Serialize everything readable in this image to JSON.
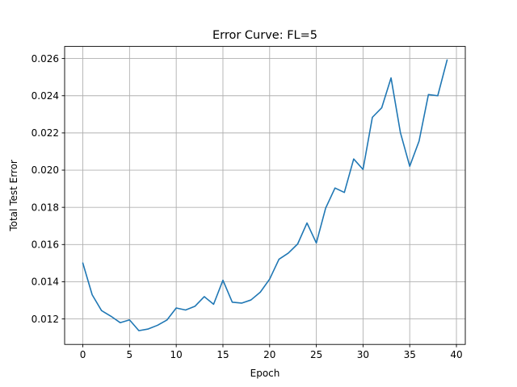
{
  "chart_data": {
    "type": "line",
    "title": "Error Curve: FL=5",
    "xlabel": "Epoch",
    "ylabel": "Total Test Error",
    "xlim": [
      -1.95,
      40.95
    ],
    "ylim": [
      0.01063,
      0.02665
    ],
    "xticks": [
      0,
      5,
      10,
      15,
      20,
      25,
      30,
      35,
      40
    ],
    "yticks": [
      0.012,
      0.014,
      0.016,
      0.018,
      0.02,
      0.022,
      0.024,
      0.026
    ],
    "xtick_labels": [
      "0",
      "5",
      "10",
      "15",
      "20",
      "25",
      "30",
      "35",
      "40"
    ],
    "ytick_labels": [
      "0.012",
      "0.014",
      "0.016",
      "0.018",
      "0.020",
      "0.022",
      "0.024",
      "0.026"
    ],
    "grid": true,
    "series": [
      {
        "color": "#1f77b4",
        "x": [
          0,
          1,
          2,
          3,
          4,
          5,
          6,
          7,
          8,
          9,
          10,
          11,
          12,
          13,
          14,
          15,
          16,
          17,
          18,
          19,
          20,
          21,
          22,
          23,
          24,
          25,
          26,
          27,
          28,
          29,
          30,
          31,
          32,
          33,
          34,
          35,
          36,
          37,
          38,
          39
        ],
        "y": [
          0.015,
          0.0133,
          0.01245,
          0.01215,
          0.0118,
          0.01195,
          0.01137,
          0.01146,
          0.01166,
          0.01194,
          0.01259,
          0.01248,
          0.01268,
          0.0132,
          0.01279,
          0.01408,
          0.0129,
          0.01285,
          0.01302,
          0.01344,
          0.01414,
          0.01521,
          0.01554,
          0.01603,
          0.01716,
          0.01608,
          0.01796,
          0.01904,
          0.0188,
          0.0206,
          0.02004,
          0.02284,
          0.02335,
          0.02496,
          0.02202,
          0.02021,
          0.02156,
          0.02406,
          0.024,
          0.02592
        ]
      }
    ]
  }
}
